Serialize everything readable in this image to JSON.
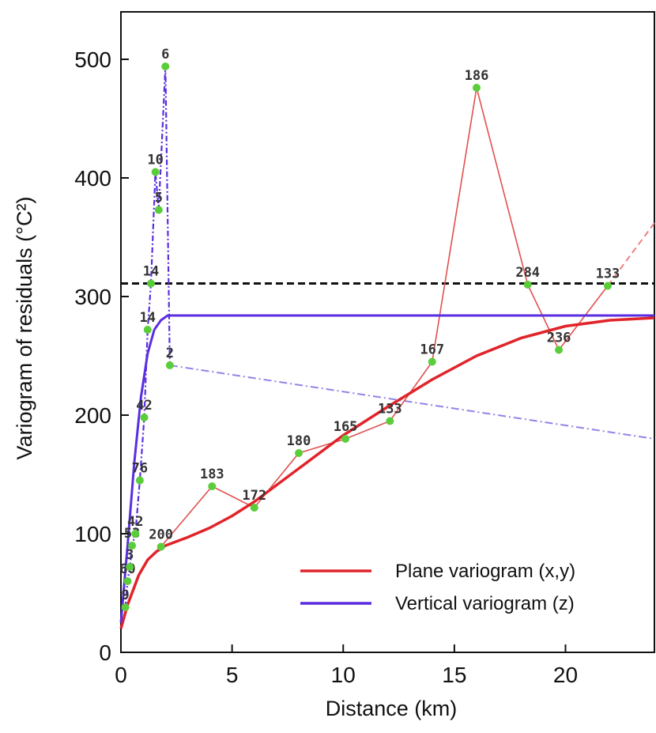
{
  "chart_data": {
    "type": "line",
    "xlabel": "Distance (km)",
    "ylabel": "Variogram of residuals (°C²)",
    "xlim": [
      0,
      24
    ],
    "ylim": [
      0,
      540
    ],
    "xticks": [
      0,
      5,
      10,
      15,
      20
    ],
    "yticks": [
      0,
      100,
      200,
      300,
      400,
      500
    ],
    "grid": false,
    "legend_position": "bottom-right",
    "colors": {
      "plane": "#e0242a",
      "vertical": "#5a2ee0",
      "empirical_plane": "#e05050",
      "points": "#5acd3a",
      "sill": "#111111"
    },
    "legend": [
      {
        "label": "Plane variogram (x,y)",
        "color": "#e0242a"
      },
      {
        "label": "Vertical variogram (z)",
        "color": "#5a2ee0"
      }
    ],
    "series": [
      {
        "name": "Plane variogram (x,y)",
        "kind": "model",
        "x": [
          0,
          0.3,
          0.8,
          1.2,
          1.6,
          2,
          3,
          4,
          5,
          6,
          8,
          10,
          12,
          14,
          16,
          18,
          20,
          22,
          24
        ],
        "y": [
          20,
          40,
          65,
          78,
          85,
          90,
          97,
          105,
          115,
          127,
          155,
          183,
          207,
          230,
          250,
          265,
          275,
          280,
          282
        ]
      },
      {
        "name": "Vertical variogram (z)",
        "kind": "model",
        "x": [
          0,
          0.3,
          0.6,
          0.9,
          1.2,
          1.5,
          1.8,
          2.1,
          24
        ],
        "y": [
          25,
          90,
          160,
          215,
          252,
          272,
          280,
          284,
          284
        ]
      },
      {
        "kind": "empirical-plane",
        "x": [
          1.8,
          4.1,
          6.0,
          8.0,
          10.1,
          12.1,
          14.0,
          16.0,
          18.3,
          19.7,
          21.9
        ],
        "y": [
          89,
          140,
          122,
          168,
          180,
          195,
          245,
          476,
          310,
          255,
          309
        ],
        "labels": [
          "200",
          "183",
          "172",
          "180",
          "165",
          "133",
          "167",
          "186",
          "284",
          "236",
          "133"
        ]
      },
      {
        "kind": "empirical-vertical",
        "x": [
          0.2,
          0.3,
          0.4,
          0.5,
          0.65,
          0.85,
          1.05,
          1.2,
          1.35,
          1.55,
          1.7,
          2.0,
          2.2
        ],
        "y": [
          38,
          60,
          72,
          90,
          100,
          145,
          198,
          272,
          311,
          405,
          373,
          494,
          242
        ],
        "labels": [
          "9",
          "60",
          "3",
          "53",
          "42",
          "76",
          "42",
          "14",
          "14",
          "10",
          "5",
          "6",
          "2"
        ]
      },
      {
        "kind": "plane-trend-extension",
        "x": [
          21.9,
          24
        ],
        "y": [
          309,
          362
        ]
      },
      {
        "kind": "vertical-trend-extension",
        "x": [
          2.2,
          24
        ],
        "y": [
          242,
          180
        ]
      }
    ],
    "reference_lines": [
      {
        "kind": "sill",
        "y": 311,
        "style": "dashed"
      }
    ]
  }
}
